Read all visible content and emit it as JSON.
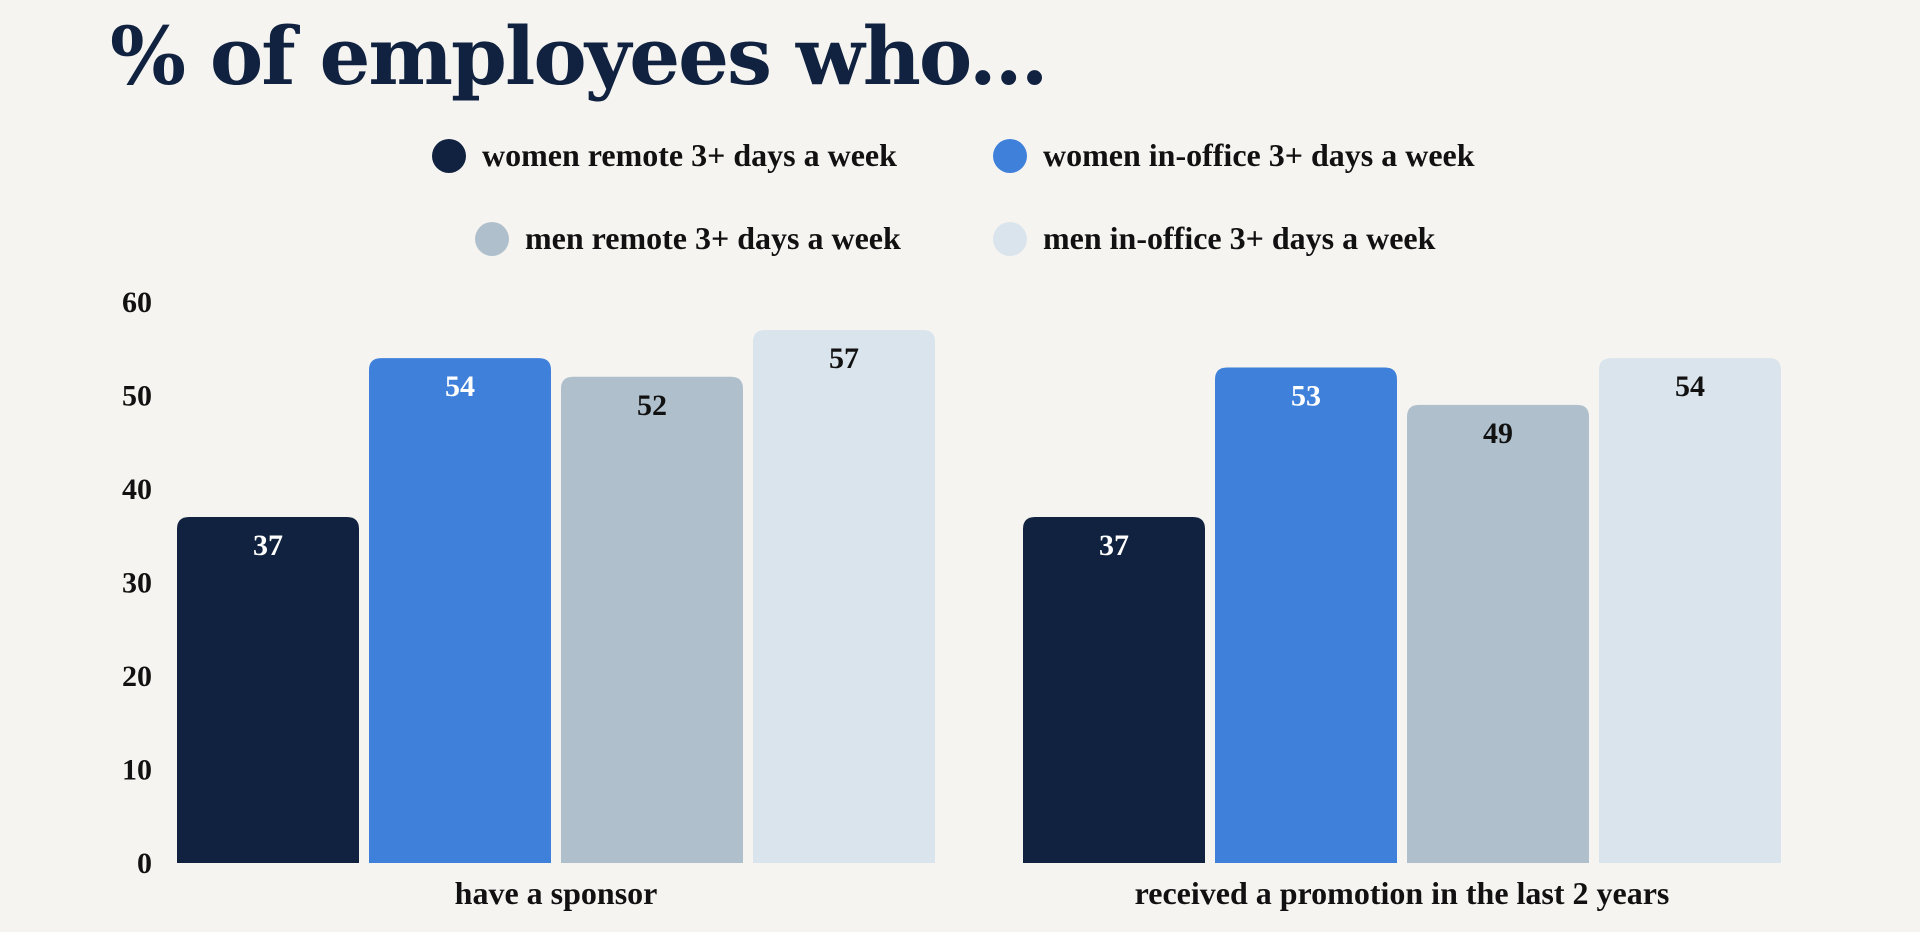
{
  "chart_data": {
    "type": "bar",
    "title": "% of employees who...",
    "xlabel": "",
    "ylabel": "",
    "ylim": [
      0,
      60
    ],
    "yticks": [
      0,
      10,
      20,
      30,
      40,
      50,
      60
    ],
    "grid": false,
    "legend_position": "top",
    "categories": [
      "have a sponsor",
      "received a promotion in the last 2 years"
    ],
    "series": [
      {
        "name": "women remote 3+ days a week",
        "values": [
          37,
          37
        ],
        "color": "#10223f",
        "label_color": "#ffffff"
      },
      {
        "name": "women in-office 3+ days a week",
        "values": [
          54,
          53
        ],
        "color": "#3f80da",
        "label_color": "#ffffff"
      },
      {
        "name": "men remote 3+ days a week",
        "values": [
          52,
          49
        ],
        "color": "#afbfcc",
        "label_color": "#111111"
      },
      {
        "name": "men in-office 3+ days a week",
        "values": [
          57,
          54
        ],
        "color": "#dae4ec",
        "label_color": "#111111"
      }
    ]
  }
}
